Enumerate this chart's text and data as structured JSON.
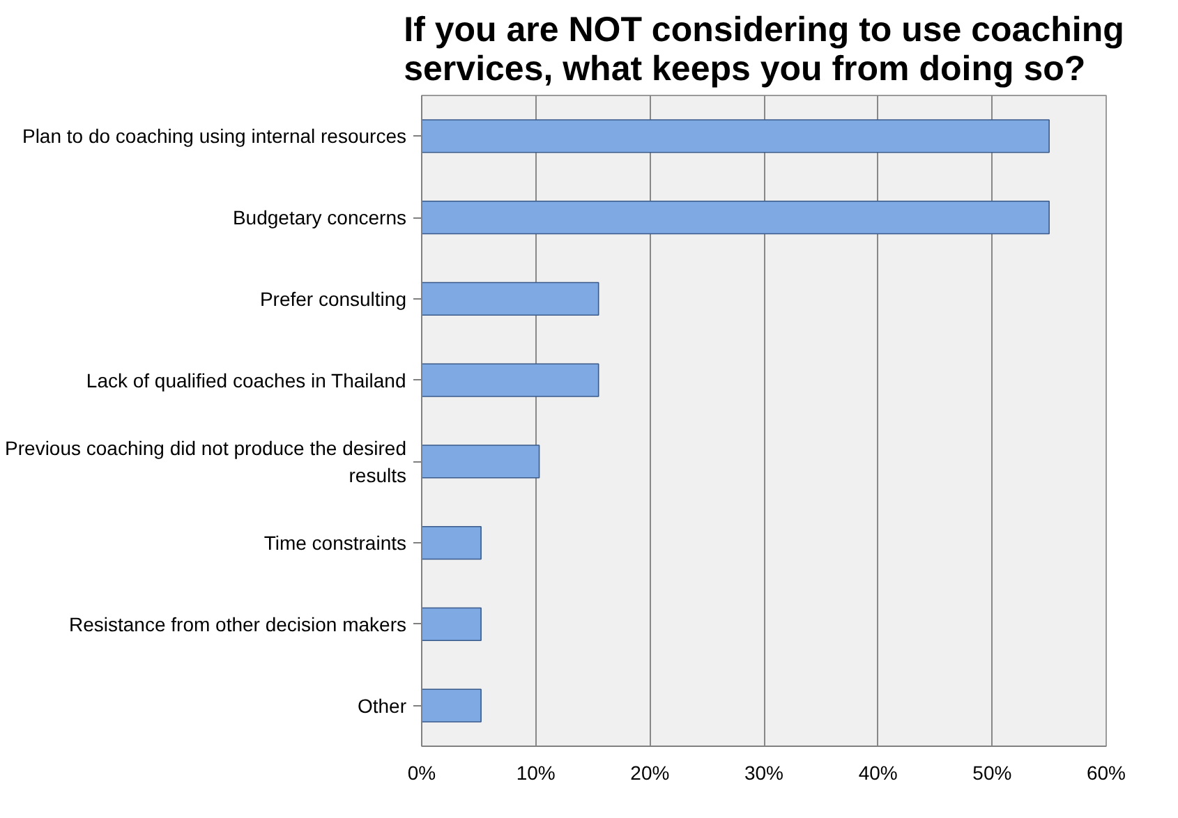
{
  "chart_data": {
    "type": "bar",
    "orientation": "horizontal",
    "title": "If you are NOT considering to use coaching services, what keeps you from doing so?",
    "categories": [
      "Plan to do coaching using internal resources",
      "Budgetary concerns",
      "Prefer consulting",
      "Lack of qualified coaches in Thailand",
      "Previous coaching did not produce the desired results",
      "Time constraints",
      "Resistance from other decision makers",
      "Other"
    ],
    "values": [
      55,
      55,
      15.5,
      15.5,
      10.3,
      5.2,
      5.2,
      5.2
    ],
    "color": "#7fa9e2",
    "xlim": [
      0,
      60
    ],
    "xticks": [
      {
        "value": 0,
        "label": "0%"
      },
      {
        "value": 10,
        "label": "10%"
      },
      {
        "value": 20,
        "label": "20%"
      },
      {
        "value": 30,
        "label": "30%"
      },
      {
        "value": 40,
        "label": "40%"
      },
      {
        "value": 50,
        "label": "50%"
      },
      {
        "value": 60,
        "label": "60%"
      }
    ],
    "grid": "x"
  }
}
